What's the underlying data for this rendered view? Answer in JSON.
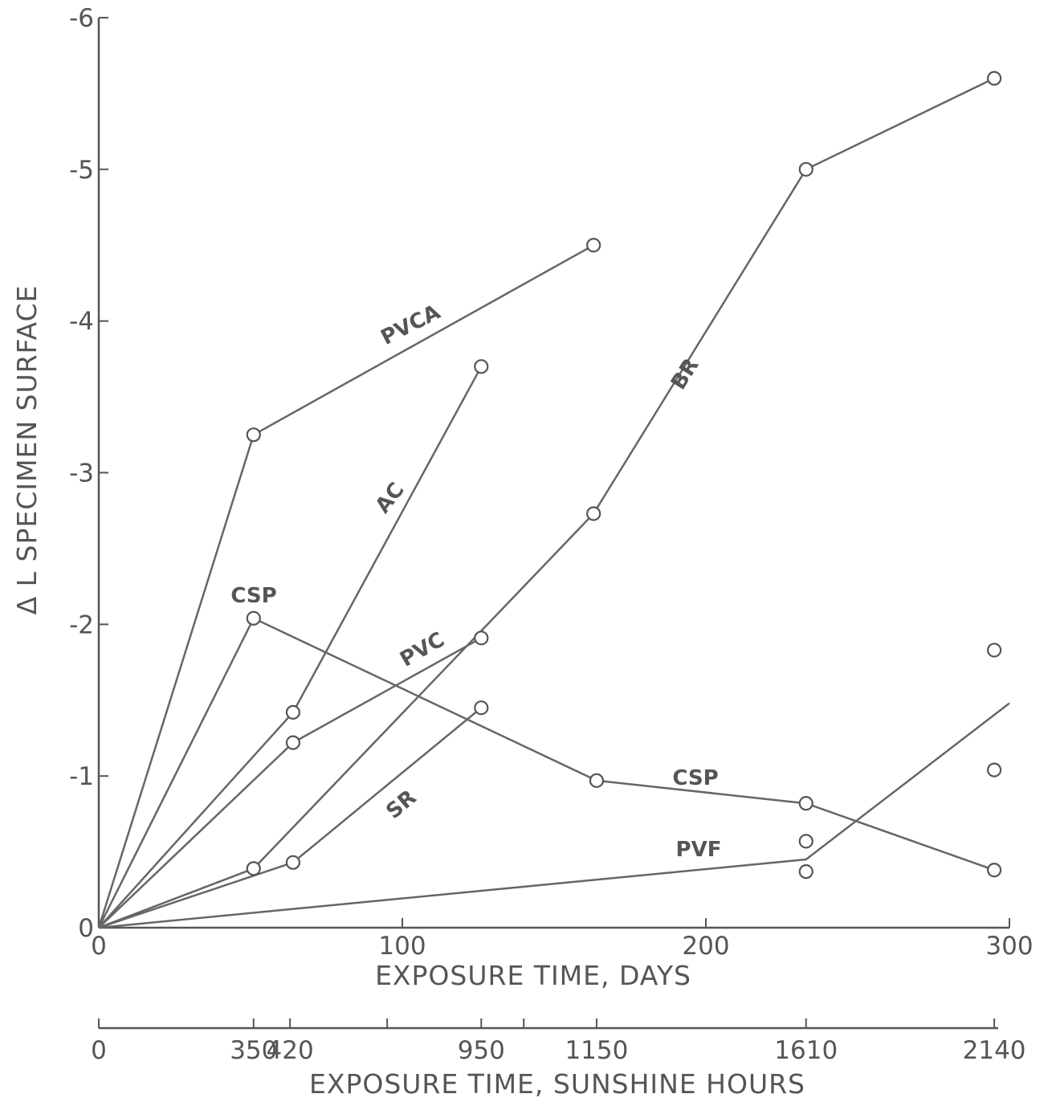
{
  "chart_data": {
    "type": "line",
    "title": "",
    "xlabel": "EXPOSURE TIME, DAYS",
    "ylabel": "Δ L SPECIMEN SURFACE",
    "xlim": [
      0,
      300
    ],
    "ylim": [
      0,
      -6
    ],
    "x_ticks": [
      0,
      100,
      200,
      300
    ],
    "x_tick_labels": [
      "0",
      "100",
      "200",
      "300"
    ],
    "y_ticks": [
      0,
      -1,
      -2,
      -3,
      -4,
      -5,
      -6
    ],
    "y_tick_labels": [
      "0",
      "-1",
      "-2",
      "-3",
      "-4",
      "-5",
      "-6"
    ],
    "secondary_x_axis": {
      "label": "EXPOSURE TIME, SUNSHINE HOURS",
      "ticks": [
        {
          "day": 0,
          "label": "0"
        },
        {
          "day": 51,
          "label": "350"
        },
        {
          "day": 63,
          "label": "420"
        },
        {
          "day": 95,
          "label": ""
        },
        {
          "day": 126,
          "label": "950"
        },
        {
          "day": 140,
          "label": ""
        },
        {
          "day": 164,
          "label": "1150"
        },
        {
          "day": 233,
          "label": "1610"
        },
        {
          "day": 295,
          "label": "2140"
        }
      ]
    },
    "series": [
      {
        "name": "PVCA",
        "x": [
          0,
          51,
          163
        ],
        "y": [
          0,
          -3.25,
          -4.5
        ],
        "markers": [
          false,
          true,
          true
        ]
      },
      {
        "name": "AC",
        "x": [
          0,
          64,
          126
        ],
        "y": [
          0,
          -1.42,
          -3.7
        ],
        "markers": [
          false,
          true,
          true
        ]
      },
      {
        "name": "BR",
        "x": [
          0,
          51,
          163,
          233,
          295
        ],
        "y": [
          0,
          -0.39,
          -2.73,
          -5.0,
          -5.6
        ],
        "markers": [
          false,
          true,
          true,
          true,
          true
        ]
      },
      {
        "name": "PVC",
        "x": [
          0,
          64,
          126
        ],
        "y": [
          0,
          -1.22,
          -1.91
        ],
        "markers": [
          false,
          true,
          true
        ]
      },
      {
        "name": "SR",
        "x": [
          0,
          64,
          126
        ],
        "y": [
          0,
          -0.43,
          -1.45
        ],
        "markers": [
          false,
          true,
          true
        ]
      },
      {
        "name": "CSP",
        "x": [
          0,
          51,
          164,
          233,
          295
        ],
        "y": [
          0,
          -2.04,
          -0.97,
          -0.82,
          -0.38
        ],
        "markers": [
          false,
          true,
          true,
          true,
          true
        ]
      },
      {
        "name": "PVF",
        "x": [
          0,
          233,
          300
        ],
        "y": [
          0,
          -0.45,
          -1.48
        ],
        "markers": [
          false,
          false,
          false
        ]
      }
    ],
    "extra_points": [
      {
        "x": 233,
        "y": -0.57
      },
      {
        "x": 233,
        "y": -0.37
      },
      {
        "x": 295,
        "y": -1.83
      },
      {
        "x": 295,
        "y": -1.04
      }
    ],
    "annotations": [
      "PVCA",
      "AC",
      "BR",
      "CSP",
      "PVC",
      "SR",
      "CSP",
      "PVF"
    ],
    "grid": false,
    "legend": "none"
  }
}
